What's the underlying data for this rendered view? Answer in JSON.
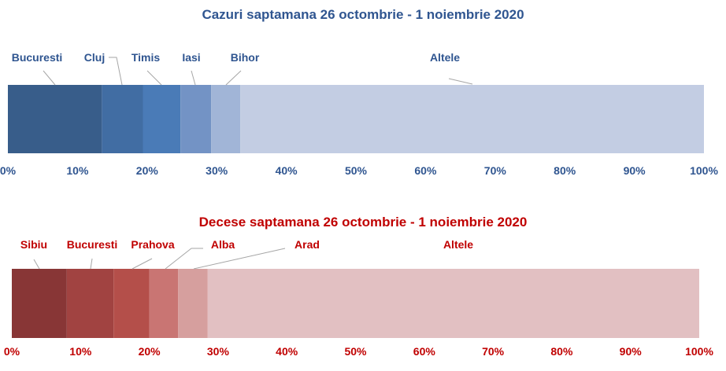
{
  "chart_data": [
    {
      "type": "bar",
      "orientation": "horizontal-stacked-100",
      "title": "Cazuri saptamana 26 octombrie - 1 noiembrie 2020",
      "categories": [
        "Bucuresti",
        "Cluj",
        "Timis",
        "Iasi",
        "Bihor",
        "Altele"
      ],
      "values": [
        13.5,
        5.9,
        5.4,
        4.4,
        4.2,
        66.6
      ],
      "colors": [
        "#385D8A",
        "#416DA3",
        "#4A7BB7",
        "#7393C5",
        "#A1B5D7",
        "#C3CDE3"
      ],
      "title_color": "#2F5590",
      "label_color": "#2F5590",
      "xlim": [
        0,
        100
      ],
      "xticks": [
        "0%",
        "10%",
        "20%",
        "30%",
        "40%",
        "50%",
        "60%",
        "70%",
        "80%",
        "90%",
        "100%"
      ]
    },
    {
      "type": "bar",
      "orientation": "horizontal-stacked-100",
      "title": "Decese saptamana 26 octombrie - 1 noiembrie 2020",
      "categories": [
        "Sibiu",
        "Bucuresti",
        "Prahova",
        "Alba",
        "Arad",
        "Altele"
      ],
      "values": [
        8.0,
        6.8,
        5.2,
        4.2,
        4.3,
        71.5
      ],
      "colors": [
        "#883636",
        "#A14341",
        "#B44F4A",
        "#C97573",
        "#D69F9E",
        "#E2C0C2"
      ],
      "title_color": "#C00000",
      "label_color": "#C00000",
      "xlim": [
        0,
        100
      ],
      "xticks": [
        "0%",
        "10%",
        "20%",
        "30%",
        "40%",
        "50%",
        "60%",
        "70%",
        "80%",
        "90%",
        "100%"
      ]
    }
  ]
}
